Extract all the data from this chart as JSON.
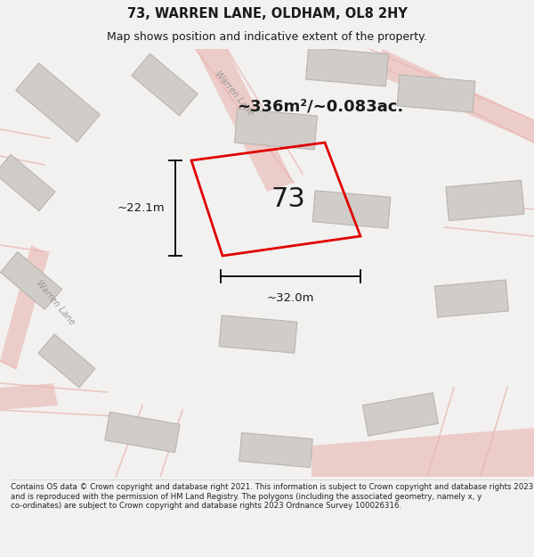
{
  "title": "73, WARREN LANE, OLDHAM, OL8 2HY",
  "subtitle": "Map shows position and indicative extent of the property.",
  "area_text": "~336m²/~0.083ac.",
  "label_73": "73",
  "dim_height": "~22.1m",
  "dim_width": "~32.0m",
  "footer": "Contains OS data © Crown copyright and database right 2021. This information is subject to Crown copyright and database rights 2023 and is reproduced with the permission of HM Land Registry. The polygons (including the associated geometry, namely x, y co-ordinates) are subject to Crown copyright and database rights 2023 Ordnance Survey 100026316.",
  "bg_color": "#f2f1f0",
  "map_bg": "#edecea",
  "road_color": "#e8b4ae",
  "building_color": "#d0ccc8",
  "building_edge": "#b8b4b0",
  "highlight_color": "#e00000",
  "text_color": "#1a1a1a",
  "footer_color": "#222222",
  "title_fontsize": 10.5,
  "subtitle_fontsize": 9,
  "area_fontsize": 13,
  "label_fontsize": 22,
  "dim_fontsize": 9.5,
  "footer_fontsize": 6.2,
  "road_label_color": "#999999",
  "road_label_fontsize": 7
}
